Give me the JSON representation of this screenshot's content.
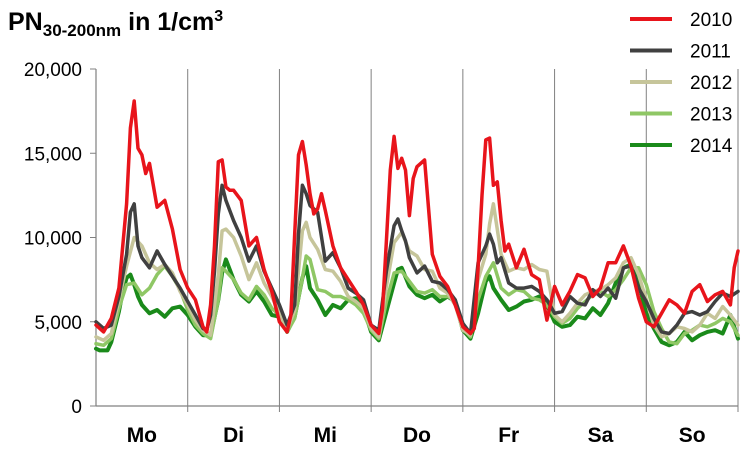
{
  "title": {
    "main": "PN",
    "subscript": "30-200nm",
    "rest": " in 1/cm",
    "superscript": "3"
  },
  "chart_data": {
    "type": "line",
    "title": "PN30-200nm in 1/cm³",
    "xlabel": "",
    "ylabel": "",
    "ylim": [
      0,
      20000
    ],
    "yticks": [
      0,
      5000,
      10000,
      15000,
      20000
    ],
    "ytick_labels": [
      "0",
      "5,000",
      "10,000",
      "15,000",
      "20,000"
    ],
    "categories": [
      "Mo",
      "Di",
      "Mi",
      "Do",
      "Fr",
      "Sa",
      "So"
    ],
    "x_note": "hour of week, 0-168 (x values are hours)",
    "grid": false,
    "legend_position": "top-right",
    "series": [
      {
        "name": "2010",
        "color": "#e8141b",
        "width": 3.5,
        "x": [
          0,
          2,
          4,
          6,
          8,
          9,
          10,
          11,
          12,
          13,
          14,
          15,
          16,
          18,
          20,
          22,
          24,
          26,
          27,
          28,
          29,
          30,
          31,
          32,
          33,
          34,
          35,
          36,
          38,
          40,
          42,
          44,
          46,
          48,
          50,
          51,
          52,
          53,
          54,
          55,
          56,
          57,
          58,
          59,
          60,
          62,
          64,
          66,
          68,
          70,
          72,
          74,
          75,
          76,
          77,
          78,
          79,
          80,
          81,
          82,
          83,
          84,
          86,
          88,
          90,
          92,
          94,
          96,
          98,
          99,
          100,
          101,
          102,
          103,
          104,
          105,
          106,
          107,
          108,
          110,
          112,
          114,
          116,
          118,
          120,
          122,
          124,
          126,
          128,
          130,
          132,
          134,
          136,
          138,
          140,
          142,
          144,
          146,
          148,
          150,
          152,
          154,
          156,
          158,
          160,
          162,
          164,
          166,
          167,
          168
        ],
        "y": [
          4800,
          4400,
          5200,
          7000,
          12000,
          16500,
          18100,
          15300,
          14900,
          13800,
          14400,
          13100,
          11800,
          12200,
          10500,
          8100,
          7000,
          6300,
          5500,
          4700,
          4400,
          6000,
          9500,
          14500,
          14600,
          13000,
          12800,
          12800,
          12200,
          9500,
          10000,
          8100,
          6800,
          5000,
          4400,
          5400,
          10200,
          14900,
          15700,
          14300,
          12600,
          11400,
          11700,
          12600,
          11600,
          9500,
          8200,
          7500,
          6800,
          6000,
          4800,
          4300,
          5800,
          9800,
          14000,
          16000,
          14100,
          14700,
          14000,
          11300,
          13500,
          14200,
          14600,
          9000,
          7700,
          7100,
          6000,
          4700,
          4300,
          4600,
          8200,
          12500,
          15800,
          15900,
          13100,
          13300,
          11000,
          9200,
          9600,
          8200,
          9300,
          7800,
          7500,
          5100,
          7100,
          6000,
          6800,
          7800,
          7600,
          6500,
          7000,
          8500,
          8500,
          9500,
          8300,
          6400,
          5000,
          4700,
          5500,
          6300,
          6000,
          5500,
          6800,
          7200,
          6200,
          6600,
          6800,
          6000,
          8200,
          9200
        ]
      },
      {
        "name": "2011",
        "color": "#404040",
        "width": 3.5,
        "x": [
          0,
          2,
          4,
          6,
          8,
          9,
          10,
          11,
          12,
          14,
          16,
          18,
          20,
          22,
          24,
          26,
          27,
          28,
          29,
          30,
          31,
          32,
          33,
          34,
          36,
          38,
          40,
          42,
          44,
          46,
          48,
          50,
          52,
          53,
          54,
          55,
          56,
          58,
          60,
          62,
          64,
          66,
          68,
          70,
          72,
          74,
          76,
          78,
          79,
          80,
          81,
          82,
          84,
          86,
          88,
          90,
          92,
          94,
          96,
          98,
          100,
          102,
          103,
          104,
          105,
          106,
          108,
          110,
          112,
          114,
          116,
          118,
          120,
          122,
          124,
          126,
          128,
          130,
          132,
          134,
          136,
          138,
          140,
          142,
          144,
          146,
          148,
          150,
          152,
          154,
          156,
          158,
          160,
          162,
          164,
          166,
          168
        ],
        "y": [
          5000,
          4600,
          4800,
          6500,
          9000,
          11500,
          12000,
          9500,
          8800,
          8200,
          9200,
          8400,
          7700,
          7000,
          6200,
          5400,
          5000,
          4600,
          4500,
          5400,
          8000,
          11400,
          13100,
          12200,
          11000,
          10000,
          8600,
          9500,
          8000,
          7000,
          6000,
          4800,
          6000,
          10200,
          13100,
          12600,
          11900,
          11500,
          8600,
          9100,
          8200,
          7000,
          6700,
          6300,
          4800,
          4500,
          8000,
          10700,
          11100,
          10400,
          9800,
          8800,
          7900,
          8300,
          7400,
          7300,
          6900,
          6300,
          4900,
          4300,
          8500,
          9500,
          10200,
          9600,
          8500,
          8800,
          7300,
          7000,
          7000,
          7100,
          6800,
          6300,
          5500,
          5600,
          6500,
          6100,
          6000,
          6900,
          6500,
          7000,
          6400,
          8200,
          8300,
          7000,
          6200,
          5200,
          4400,
          4300,
          4800,
          5500,
          5600,
          5400,
          5600,
          6200,
          6700,
          6500,
          6800
        ]
      },
      {
        "name": "2012",
        "color": "#c6c59a",
        "width": 3.5,
        "x": [
          0,
          2,
          4,
          6,
          8,
          10,
          12,
          14,
          16,
          18,
          20,
          22,
          24,
          26,
          28,
          30,
          32,
          33,
          34,
          36,
          38,
          40,
          42,
          44,
          46,
          48,
          50,
          52,
          54,
          55,
          56,
          58,
          60,
          62,
          64,
          66,
          68,
          70,
          72,
          74,
          76,
          78,
          80,
          82,
          84,
          86,
          88,
          90,
          92,
          94,
          96,
          98,
          100,
          102,
          103,
          104,
          106,
          108,
          110,
          112,
          114,
          116,
          118,
          120,
          122,
          124,
          126,
          128,
          130,
          132,
          134,
          136,
          138,
          140,
          142,
          144,
          146,
          148,
          150,
          152,
          154,
          156,
          158,
          160,
          162,
          164,
          166,
          168
        ],
        "y": [
          4100,
          3900,
          4300,
          6300,
          8300,
          10000,
          9500,
          8500,
          8100,
          8400,
          7900,
          6800,
          6000,
          5100,
          4500,
          4200,
          7800,
          10400,
          10500,
          10000,
          8900,
          7500,
          8500,
          7300,
          6500,
          5500,
          4500,
          5700,
          10400,
          10900,
          10000,
          9300,
          8100,
          8000,
          7400,
          6500,
          6200,
          5800,
          4600,
          4100,
          7100,
          9700,
          10300,
          9200,
          8900,
          8100,
          8000,
          7000,
          6700,
          6000,
          4500,
          4200,
          7500,
          9000,
          10800,
          12000,
          9000,
          8000,
          8200,
          8100,
          8400,
          8100,
          8000,
          5400,
          5000,
          5500,
          6100,
          6600,
          6800,
          6900,
          7200,
          7600,
          8500,
          8800,
          7800,
          6300,
          4800,
          4100,
          4300,
          4700,
          4600,
          4400,
          4800,
          5500,
          5200,
          5900,
          5400,
          4800
        ]
      },
      {
        "name": "2013",
        "color": "#8fc765",
        "width": 3.5,
        "x": [
          0,
          2,
          4,
          6,
          8,
          10,
          12,
          14,
          16,
          18,
          20,
          22,
          24,
          26,
          28,
          30,
          32,
          33,
          34,
          36,
          38,
          40,
          42,
          44,
          46,
          48,
          50,
          52,
          54,
          55,
          56,
          58,
          60,
          62,
          64,
          66,
          68,
          70,
          72,
          74,
          76,
          78,
          80,
          82,
          84,
          86,
          88,
          90,
          92,
          94,
          96,
          98,
          100,
          102,
          104,
          106,
          108,
          110,
          112,
          114,
          116,
          118,
          120,
          122,
          124,
          126,
          128,
          130,
          132,
          134,
          136,
          138,
          140,
          142,
          144,
          146,
          148,
          150,
          152,
          154,
          156,
          158,
          160,
          162,
          164,
          166,
          168
        ],
        "y": [
          3700,
          3600,
          4000,
          5800,
          7200,
          7300,
          6600,
          7000,
          7800,
          8300,
          7700,
          6900,
          5700,
          4800,
          4300,
          4000,
          6300,
          8200,
          8000,
          7500,
          6700,
          6300,
          7100,
          6600,
          5800,
          5400,
          4400,
          5200,
          7600,
          8900,
          8700,
          6900,
          6800,
          6500,
          6500,
          6300,
          6000,
          5500,
          4500,
          4000,
          6200,
          7900,
          8000,
          7400,
          6800,
          6700,
          6900,
          6500,
          6500,
          6300,
          4600,
          4100,
          6300,
          7700,
          8500,
          7000,
          6600,
          6900,
          6800,
          6400,
          6300,
          6000,
          5300,
          4900,
          5200,
          5800,
          6200,
          6600,
          6800,
          6500,
          6900,
          7500,
          8200,
          8200,
          7200,
          5600,
          4600,
          3800,
          3700,
          4300,
          4500,
          4800,
          4700,
          4900,
          5200,
          5000,
          4200
        ]
      },
      {
        "name": "2014",
        "color": "#1a8a1a",
        "width": 4,
        "x": [
          0,
          1,
          2,
          3,
          4,
          6,
          7,
          8,
          9,
          10,
          11,
          12,
          14,
          16,
          18,
          20,
          22,
          24,
          26,
          28,
          30,
          32,
          33,
          34,
          36,
          38,
          40,
          42,
          44,
          46,
          48,
          50,
          52,
          54,
          55,
          56,
          58,
          60,
          62,
          64,
          66,
          68,
          70,
          72,
          74,
          76,
          78,
          79,
          80,
          82,
          84,
          86,
          88,
          90,
          92,
          94,
          96,
          98,
          100,
          102,
          103,
          104,
          106,
          108,
          110,
          112,
          114,
          116,
          118,
          120,
          122,
          124,
          126,
          128,
          130,
          132,
          134,
          136,
          138,
          140,
          142,
          144,
          146,
          148,
          150,
          152,
          154,
          156,
          158,
          160,
          162,
          164,
          166,
          168
        ],
        "y": [
          3400,
          3300,
          3300,
          3300,
          3800,
          5600,
          6800,
          7600,
          7800,
          7200,
          6500,
          6000,
          5500,
          5700,
          5300,
          5800,
          5900,
          5400,
          4700,
          4200,
          4200,
          6300,
          7900,
          8700,
          7500,
          6600,
          6200,
          6800,
          6200,
          5400,
          5300,
          4400,
          5300,
          7600,
          8300,
          7000,
          6300,
          5400,
          6000,
          5800,
          6300,
          6400,
          5800,
          4400,
          3900,
          5600,
          7300,
          8100,
          8200,
          7100,
          6600,
          6400,
          6600,
          6200,
          6500,
          6200,
          4500,
          4000,
          5500,
          7400,
          7700,
          7000,
          6300,
          5700,
          5900,
          6200,
          6300,
          6500,
          6000,
          5000,
          4700,
          4800,
          5300,
          5200,
          5800,
          5400,
          6100,
          7300,
          8200,
          8400,
          7300,
          5500,
          4600,
          3800,
          3600,
          3800,
          4400,
          3900,
          4200,
          4400,
          4500,
          4300,
          5400,
          4000
        ]
      }
    ]
  }
}
